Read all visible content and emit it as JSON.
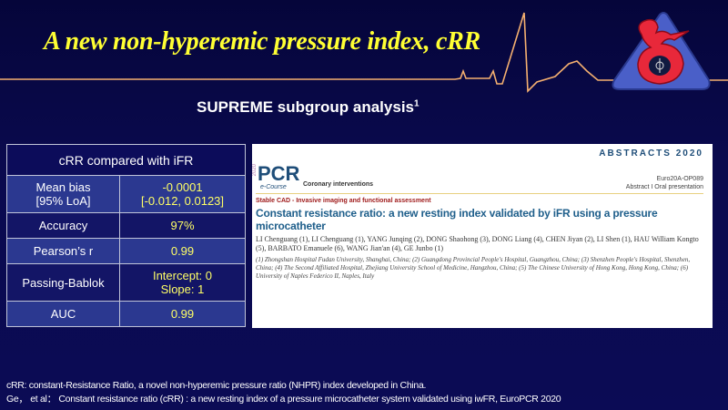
{
  "slide": {
    "title": "A new non-hyperemic pressure index, cRR",
    "subtitle": "SUPREME subgroup analysis",
    "subtitle_sup": "1",
    "colors": {
      "title": "#ffff33",
      "background": "#0a0a4e",
      "value_text": "#ffff66",
      "ecg_line": "#f5b070"
    }
  },
  "table": {
    "header": "cRR compared with iFR",
    "rows": [
      {
        "label": [
          "Mean bias",
          "[95% LoA]"
        ],
        "value": [
          "-0.0001",
          "[-0.012, 0.0123]"
        ]
      },
      {
        "label": [
          "Accuracy"
        ],
        "value": [
          "97%"
        ]
      },
      {
        "label": [
          "Pearson’s r"
        ],
        "value": [
          "0.99"
        ]
      },
      {
        "label": [
          "Passing-Bablok"
        ],
        "value": [
          "Intercept: 0",
          "Slope: 1"
        ]
      },
      {
        "label": [
          "AUC"
        ],
        "value": [
          "0.99"
        ]
      }
    ]
  },
  "abstract": {
    "banner": "ABSTRACTS 2020",
    "year": "2020",
    "brand": "PCR",
    "brand_sub": "e-Course",
    "section": "Coronary interventions",
    "code": "Euro20A-OP089",
    "type": "Abstract I Oral presentation",
    "category": "Stable CAD - Invasive imaging and functional assessment",
    "title": "Constant resistance ratio: a new resting index validated by iFR using a pressure microcatheter",
    "authors": "LI Chenguang (1), LI Chenguang (1), YANG Junqing (2), DONG Shaohong (3), DONG Liang (4), CHEN Jiyan (2), LI Shen (1), HAU William Kongto (5), BARBATO Emanuele (6), WANG Jian'an (4), GE Junbo (1)",
    "affiliations": "(1) Zhongshan Hospital Fudan University, Shanghai, China; (2) Guangdong Provincial People's Hospital, Guangzhou, China; (3) Shenzhen People's Hospital, Shenzhen, China; (4) The Second Affiliated Hospital, Zhejiang University School of Medicine, Hangzhou, China; (5) The Chinese University of Hong Kong, Hong Kong, China; (6) University of Naples Federico II, Naples, Italy"
  },
  "footnotes": [
    "cRR: constant-Resistance Ratio, a novel non-hyperemic pressure ratio (NHPR) index developed in China.",
    "Ge， et al： Constant resistance ratio (cRR) : a new resting index of a pressure microcatheter system validated using iwFR, EuroPCR 2020"
  ]
}
